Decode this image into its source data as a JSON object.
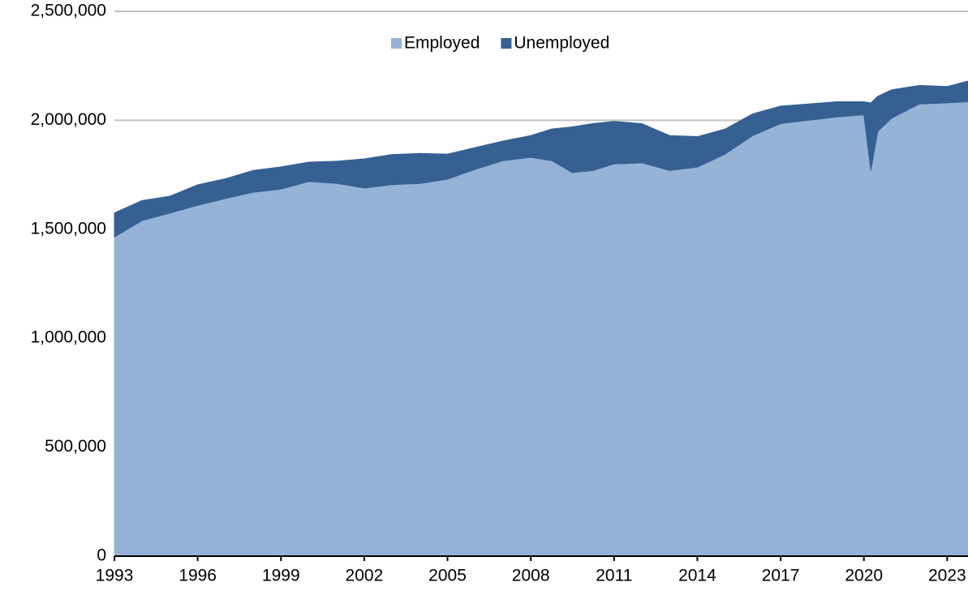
{
  "chart_data": {
    "type": "stacked_area",
    "x": [
      1993,
      1994,
      1995,
      1996,
      1997,
      1998,
      1999,
      2000,
      2001,
      2002,
      2003,
      2004,
      2005,
      2006,
      2007,
      2008,
      2008.75,
      2009.5,
      2010.25,
      2011,
      2012,
      2013,
      2014,
      2015,
      2016,
      2017,
      2018,
      2019,
      2020,
      2020.25,
      2020.5,
      2021,
      2022,
      2023,
      2023.75
    ],
    "series": [
      {
        "name": "Employed",
        "color": "#95b3d7",
        "values": [
          1465000,
          1540000,
          1574000,
          1610000,
          1641000,
          1670000,
          1684000,
          1719000,
          1711000,
          1689000,
          1705000,
          1710000,
          1730000,
          1775000,
          1815000,
          1830000,
          1815000,
          1760000,
          1770000,
          1800000,
          1805000,
          1770000,
          1785000,
          1845000,
          1930000,
          1985000,
          2000000,
          2015000,
          2025000,
          1770000,
          1950000,
          2010000,
          2075000,
          2080000,
          2085000
        ]
      },
      {
        "name": "Unemployed",
        "color": "#366092",
        "values": [
          110000,
          92000,
          78000,
          94000,
          91000,
          100000,
          102000,
          89000,
          101000,
          134000,
          138000,
          138000,
          115000,
          100000,
          90000,
          100000,
          145000,
          210000,
          215000,
          195000,
          180000,
          160000,
          140000,
          115000,
          100000,
          80000,
          75000,
          70000,
          60000,
          310000,
          160000,
          130000,
          85000,
          75000,
          95000
        ]
      }
    ],
    "xlim": [
      1993,
      2023.75
    ],
    "xticks": [
      1993,
      1996,
      1999,
      2002,
      2005,
      2008,
      2011,
      2014,
      2017,
      2020,
      2023
    ],
    "ylim": [
      0,
      2500000
    ],
    "yticks": [
      0,
      {
        "value": 500000,
        "label": "500,000"
      },
      {
        "value": 1000000,
        "label": "1,000,000"
      },
      {
        "value": 1500000,
        "label": "1,500,000"
      },
      {
        "value": 2000000,
        "label": "2,000,000"
      },
      {
        "value": 2500000,
        "label": "2,500,000"
      }
    ],
    "grid": true,
    "legend": "top"
  }
}
